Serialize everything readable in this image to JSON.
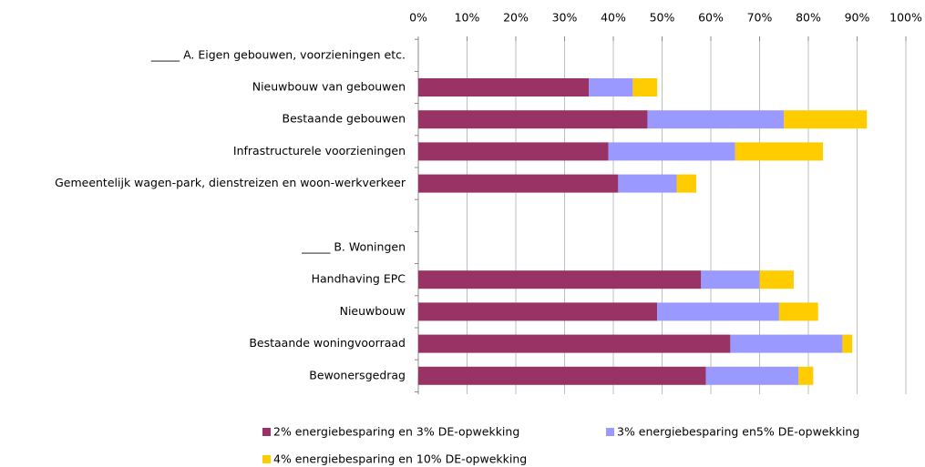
{
  "chart_data": {
    "type": "stacked_barh",
    "categories": [
      "_____  A. Eigen gebouwen, voorzieningen etc.",
      "Nieuwbouw van gebouwen",
      "Bestaande gebouwen",
      "Infrastructurele voorzieningen",
      "Gemeentelijk wagen-park, dienstreizen en woon-werkverkeer",
      null,
      "_____  B. Woningen",
      "Handhaving EPC",
      "Nieuwbouw",
      "Bestaande woningvoorraad",
      "Bewonersgedrag"
    ],
    "series": [
      {
        "name": "2% energiebesparing en 3% DE-opwekking",
        "color": "#993366",
        "values": [
          null,
          35,
          47,
          39,
          41,
          null,
          null,
          58,
          49,
          64,
          59
        ]
      },
      {
        "name": "3% energiebesparing en5% DE-opwekking",
        "color": "#9999ff",
        "values": [
          null,
          9,
          28,
          26,
          12,
          null,
          null,
          12,
          25,
          23,
          19
        ]
      },
      {
        "name": "4% energiebesparing en 10% DE-opwekking",
        "color": "#ffcc00",
        "values": [
          null,
          5,
          17,
          18,
          4,
          null,
          null,
          7,
          8,
          2,
          3
        ]
      }
    ],
    "xlim": [
      0,
      100
    ],
    "xticks": [
      {
        "value": 0,
        "label": "0%"
      },
      {
        "value": 10,
        "label": "10%"
      },
      {
        "value": 20,
        "label": "20%"
      },
      {
        "value": 30,
        "label": "30%"
      },
      {
        "value": 40,
        "label": "40%"
      },
      {
        "value": 50,
        "label": "50%"
      },
      {
        "value": 60,
        "label": "60%"
      },
      {
        "value": 70,
        "label": "70%"
      },
      {
        "value": 80,
        "label": "80%"
      },
      {
        "value": 90,
        "label": "90%"
      },
      {
        "value": 100,
        "label": "100%"
      }
    ],
    "grid": true,
    "legend": "bottom"
  }
}
